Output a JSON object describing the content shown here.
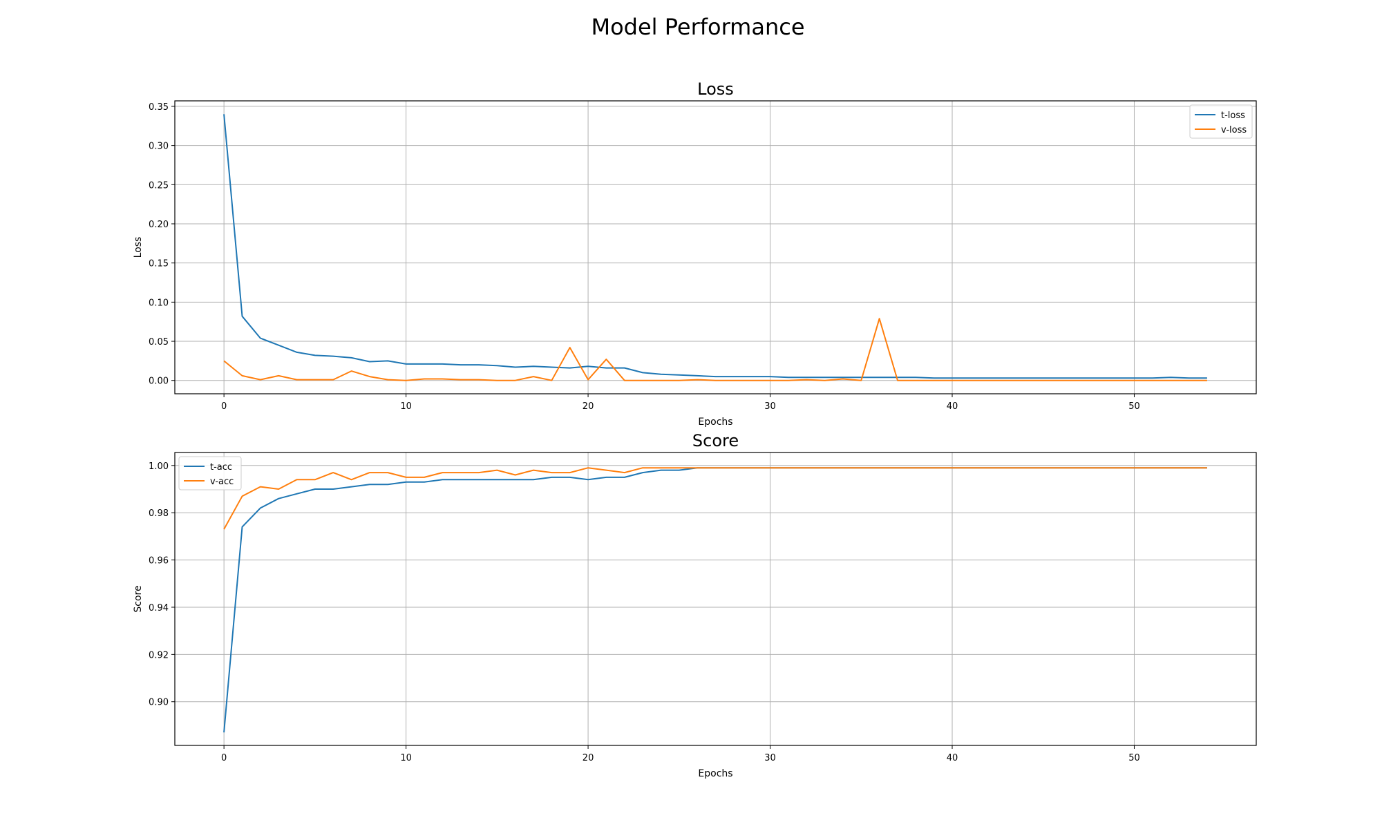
{
  "figure": {
    "title": "Model Performance"
  },
  "chart_data": [
    {
      "type": "line",
      "title": "Loss",
      "xlabel": "Epochs",
      "ylabel": "Loss",
      "xlim": [
        -2.7,
        56.7
      ],
      "ylim": [
        -0.017,
        0.357
      ],
      "xticks": [
        0,
        10,
        20,
        30,
        40,
        50
      ],
      "yticks": [
        0.0,
        0.05,
        0.1,
        0.15,
        0.2,
        0.25,
        0.3,
        0.35
      ],
      "ytick_labels": [
        "0.00",
        "0.05",
        "0.10",
        "0.15",
        "0.20",
        "0.25",
        "0.30",
        "0.35"
      ],
      "grid": true,
      "legend_position": "upper right",
      "series": [
        {
          "name": "t-loss",
          "color": "#1f77b4",
          "x": [
            0,
            1,
            2,
            3,
            4,
            5,
            6,
            7,
            8,
            9,
            10,
            11,
            12,
            13,
            14,
            15,
            16,
            17,
            18,
            19,
            20,
            21,
            22,
            23,
            24,
            25,
            26,
            27,
            28,
            29,
            30,
            31,
            32,
            33,
            34,
            35,
            36,
            37,
            38,
            39,
            40,
            41,
            42,
            43,
            44,
            45,
            46,
            47,
            48,
            49,
            50,
            51,
            52,
            53,
            54
          ],
          "values": [
            0.34,
            0.082,
            0.054,
            0.045,
            0.036,
            0.032,
            0.031,
            0.029,
            0.024,
            0.025,
            0.021,
            0.021,
            0.021,
            0.02,
            0.02,
            0.019,
            0.017,
            0.018,
            0.017,
            0.016,
            0.018,
            0.016,
            0.016,
            0.01,
            0.008,
            0.007,
            0.006,
            0.005,
            0.005,
            0.005,
            0.005,
            0.004,
            0.004,
            0.004,
            0.004,
            0.004,
            0.004,
            0.004,
            0.004,
            0.003,
            0.003,
            0.003,
            0.003,
            0.003,
            0.003,
            0.003,
            0.003,
            0.003,
            0.003,
            0.003,
            0.003,
            0.003,
            0.004,
            0.003,
            0.003
          ]
        },
        {
          "name": "v-loss",
          "color": "#ff7f0e",
          "x": [
            0,
            1,
            2,
            3,
            4,
            5,
            6,
            7,
            8,
            9,
            10,
            11,
            12,
            13,
            14,
            15,
            16,
            17,
            18,
            19,
            20,
            21,
            22,
            23,
            24,
            25,
            26,
            27,
            28,
            29,
            30,
            31,
            32,
            33,
            34,
            35,
            36,
            37,
            38,
            39,
            40,
            41,
            42,
            43,
            44,
            45,
            46,
            47,
            48,
            49,
            50,
            51,
            52,
            53,
            54
          ],
          "values": [
            0.025,
            0.006,
            0.001,
            0.006,
            0.001,
            0.001,
            0.001,
            0.012,
            0.005,
            0.001,
            0.0,
            0.002,
            0.002,
            0.001,
            0.001,
            0.0,
            0.0,
            0.005,
            0.0,
            0.042,
            0.001,
            0.027,
            0.0,
            0.0,
            0.0,
            0.0,
            0.001,
            0.0,
            0.0,
            0.0,
            0.0,
            0.0,
            0.001,
            0.0,
            0.002,
            0.0,
            0.079,
            0.0,
            0.0,
            0.0,
            0.0,
            0.0,
            0.0,
            0.0,
            0.0,
            0.0,
            0.0,
            0.0,
            0.0,
            0.0,
            0.0,
            0.0,
            0.0,
            0.0,
            0.0
          ]
        }
      ]
    },
    {
      "type": "line",
      "title": "Score",
      "xlabel": "Epochs",
      "ylabel": "Score",
      "xlim": [
        -2.7,
        56.7
      ],
      "ylim": [
        0.8815,
        1.0055
      ],
      "xticks": [
        0,
        10,
        20,
        30,
        40,
        50
      ],
      "yticks": [
        0.9,
        0.92,
        0.94,
        0.96,
        0.98,
        1.0
      ],
      "ytick_labels": [
        "0.90",
        "0.92",
        "0.94",
        "0.96",
        "0.98",
        "1.00"
      ],
      "grid": true,
      "legend_position": "upper left",
      "series": [
        {
          "name": "t-acc",
          "color": "#1f77b4",
          "x": [
            0,
            1,
            2,
            3,
            4,
            5,
            6,
            7,
            8,
            9,
            10,
            11,
            12,
            13,
            14,
            15,
            16,
            17,
            18,
            19,
            20,
            21,
            22,
            23,
            24,
            25,
            26,
            27,
            28,
            29,
            30,
            31,
            32,
            33,
            34,
            35,
            36,
            37,
            38,
            39,
            40,
            41,
            42,
            43,
            44,
            45,
            46,
            47,
            48,
            49,
            50,
            51,
            52,
            53,
            54
          ],
          "values": [
            0.887,
            0.974,
            0.982,
            0.986,
            0.988,
            0.99,
            0.99,
            0.991,
            0.992,
            0.992,
            0.993,
            0.993,
            0.994,
            0.994,
            0.994,
            0.994,
            0.994,
            0.994,
            0.995,
            0.995,
            0.994,
            0.995,
            0.995,
            0.997,
            0.998,
            0.998,
            0.999,
            0.999,
            0.999,
            0.999,
            0.999,
            0.999,
            0.999,
            0.999,
            0.999,
            0.999,
            0.999,
            0.999,
            0.999,
            0.999,
            0.999,
            0.999,
            0.999,
            0.999,
            0.999,
            0.999,
            0.999,
            0.999,
            0.999,
            0.999,
            0.999,
            0.999,
            0.999,
            0.999,
            0.999
          ]
        },
        {
          "name": "v-acc",
          "color": "#ff7f0e",
          "x": [
            0,
            1,
            2,
            3,
            4,
            5,
            6,
            7,
            8,
            9,
            10,
            11,
            12,
            13,
            14,
            15,
            16,
            17,
            18,
            19,
            20,
            21,
            22,
            23,
            24,
            25,
            26,
            27,
            28,
            29,
            30,
            31,
            32,
            33,
            34,
            35,
            36,
            37,
            38,
            39,
            40,
            41,
            42,
            43,
            44,
            45,
            46,
            47,
            48,
            49,
            50,
            51,
            52,
            53,
            54
          ],
          "values": [
            0.973,
            0.987,
            0.991,
            0.99,
            0.994,
            0.994,
            0.997,
            0.994,
            0.997,
            0.997,
            0.995,
            0.995,
            0.997,
            0.997,
            0.997,
            0.998,
            0.996,
            0.998,
            0.997,
            0.997,
            0.999,
            0.998,
            0.997,
            0.999,
            0.999,
            0.999,
            0.999,
            0.999,
            0.999,
            0.999,
            0.999,
            0.999,
            0.999,
            0.999,
            0.999,
            0.999,
            0.999,
            0.999,
            0.999,
            0.999,
            0.999,
            0.999,
            0.999,
            0.999,
            0.999,
            0.999,
            0.999,
            0.999,
            0.999,
            0.999,
            0.999,
            0.999,
            0.999,
            0.999,
            0.999
          ]
        }
      ]
    }
  ]
}
